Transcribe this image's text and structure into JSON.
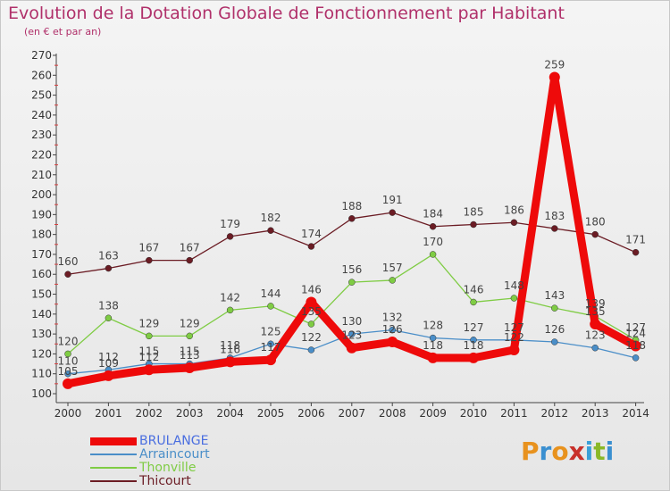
{
  "title": "Evolution de la Dotation Globale de Fonctionnement par Habitant",
  "subtitle": "(en € et par an)",
  "logo": {
    "letters": [
      "P",
      "r",
      "o",
      "x",
      "i",
      "t",
      "i"
    ],
    "colors": [
      "#e8921e",
      "#3a8fd0",
      "#e8921e",
      "#c8302a",
      "#3aa0d8",
      "#8ab828",
      "#3a8fd0"
    ]
  },
  "chart_data": {
    "type": "line",
    "title": "Evolution de la Dotation Globale de Fonctionnement par Habitant",
    "subtitle": "(en € et par an)",
    "xlabel": "",
    "ylabel": "",
    "ylim": [
      100,
      270
    ],
    "yticks": [
      100,
      110,
      120,
      130,
      140,
      150,
      160,
      170,
      180,
      190,
      200,
      210,
      220,
      230,
      240,
      250,
      260,
      270
    ],
    "categories": [
      "2000",
      "2001",
      "2002",
      "2003",
      "2004",
      "2005",
      "2006",
      "2007",
      "2008",
      "2009",
      "2010",
      "2011",
      "2012",
      "2013",
      "2014"
    ],
    "grid": false,
    "legend_position": "bottom-left",
    "series": [
      {
        "name": "Thicourt",
        "color": "#6b1c24",
        "values": [
          160,
          163,
          167,
          167,
          179,
          182,
          174,
          188,
          191,
          184,
          185,
          186,
          183,
          180,
          171
        ],
        "labels": [
          "160",
          "163",
          "167",
          "167",
          "179",
          "182",
          "174",
          "188",
          "191",
          "184",
          "185",
          "186",
          "183",
          "180",
          "171"
        ]
      },
      {
        "name": "Thonville",
        "color": "#7fcc44",
        "values": [
          120,
          138,
          129,
          129,
          142,
          144,
          135,
          156,
          157,
          170,
          146,
          148,
          143,
          139,
          127
        ],
        "labels": [
          "120",
          "138",
          "129",
          "129",
          "142",
          "144",
          "135",
          "156",
          "157",
          "170",
          "146",
          "148",
          "143",
          "139",
          "127"
        ]
      },
      {
        "name": "Arraincourt",
        "color": "#4a8ec8",
        "values": [
          110,
          112,
          115,
          115,
          118,
          125,
          122,
          130,
          132,
          128,
          127,
          127,
          126,
          123,
          118
        ],
        "labels": [
          "110",
          "112",
          "115",
          "115",
          "118",
          "125",
          "122",
          "130",
          "132",
          "128",
          "127",
          "127",
          "126",
          "123",
          "118"
        ]
      },
      {
        "name": "BRULANGE",
        "color": "#ee0a0a",
        "values": [
          105,
          109,
          112,
          113,
          116,
          117,
          146,
          123,
          126,
          118,
          118,
          122,
          259,
          135,
          124
        ],
        "labels": [
          "105",
          "109",
          "112",
          "113",
          "116",
          "117",
          "146",
          "123",
          "126",
          "118",
          "118",
          "122",
          "259",
          "135",
          "124"
        ]
      }
    ],
    "legend": [
      {
        "name": "BRULANGE",
        "color": "#ee0a0a",
        "text_color": "#4a6ee0",
        "thickness": "thick"
      },
      {
        "name": "Arraincourt",
        "color": "#4a8ec8",
        "text_color": "#4a8ec8",
        "thickness": "thin"
      },
      {
        "name": "Thonville",
        "color": "#7fcc44",
        "text_color": "#7fcc44",
        "thickness": "thin"
      },
      {
        "name": "Thicourt",
        "color": "#6b1c24",
        "text_color": "#6b1c24",
        "thickness": "thin"
      }
    ]
  }
}
